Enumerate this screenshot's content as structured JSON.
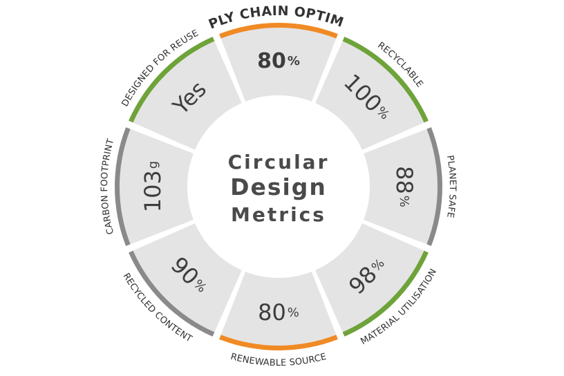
{
  "center": {
    "line1": "Circular",
    "line2": "Design",
    "line3": "Metrics"
  },
  "segments": [
    {
      "label": "SUPPLY CHAIN OPTIMIZED",
      "value": "80",
      "unit": "%",
      "color": "#f08a24",
      "bold": true
    },
    {
      "label": "RECYCLABLE",
      "value": "100",
      "unit": "%",
      "color": "#6ea33a"
    },
    {
      "label": "PLANET SAFE",
      "value": "88",
      "unit": "%",
      "color": "#8a8a8c"
    },
    {
      "label": "MATERIAL UTILISATION",
      "value": "98",
      "unit": "%",
      "color": "#6ea33a"
    },
    {
      "label": "RENEWABLE SOURCE",
      "value": "80",
      "unit": "%",
      "color": "#f08a24"
    },
    {
      "label": "RECYCLED CONTENT",
      "value": "90",
      "unit": "%",
      "color": "#8a8a8c"
    },
    {
      "label": "CARBON FOOTPRINT",
      "value": "103",
      "unit": "g",
      "color": "#8a8a8c"
    },
    {
      "label": "DESIGNED FOR REUSE",
      "value": "Yes",
      "unit": "",
      "color": "#6ea33a"
    }
  ]
}
